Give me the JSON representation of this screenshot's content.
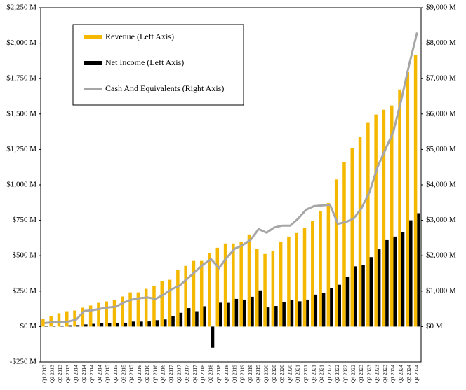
{
  "chart_data": {
    "type": "bar",
    "legend": "upper left",
    "categories": [
      "Q1 2013",
      "Q2 2013",
      "Q3 2013",
      "Q4 2013",
      "Q1 2014",
      "Q2 2014",
      "Q3 2014",
      "Q4 2014",
      "Q1 2015",
      "Q2 2015",
      "Q3 2015",
      "Q4 2015",
      "Q1 2016",
      "Q2 2016",
      "Q3 2016",
      "Q4 2016",
      "Q1 2017",
      "Q2 2017",
      "Q3 2017",
      "Q4 2017",
      "Q1 2018",
      "Q2 2018",
      "Q3 2018",
      "Q4 2018",
      "Q1 2019",
      "Q2 2019",
      "Q3 2019",
      "Q4 2019",
      "Q1 2020",
      "Q2 2020",
      "Q3 2020",
      "Q4 2020",
      "Q1 2021",
      "Q2 2021",
      "Q3 2021",
      "Q4 2021",
      "Q1 2022",
      "Q2 2022",
      "Q3 2022",
      "Q4 2022",
      "Q1 2023",
      "Q2 2023",
      "Q3 2023",
      "Q4 2023",
      "Q1 2024",
      "Q2 2024",
      "Q3 2024",
      "Q4 2024"
    ],
    "series": [
      {
        "name": "Revenue (Left Axis)",
        "type": "bar",
        "color": "#f5b800",
        "values": [
          54,
          74,
          94,
          108,
          113,
          133,
          148,
          167,
          177,
          187,
          212,
          241,
          241,
          266,
          285,
          320,
          330,
          399,
          428,
          463,
          463,
          517,
          556,
          586,
          586,
          595,
          650,
          546,
          512,
          536,
          600,
          635,
          660,
          699,
          743,
          812,
          871,
          1038,
          1161,
          1260,
          1339,
          1442,
          1496,
          1530,
          1560,
          1673,
          1796,
          1914
        ]
      },
      {
        "name": "Net Income (Left Axis)",
        "type": "bar",
        "color": "#000000",
        "values": [
          3,
          5,
          7,
          9,
          10,
          15,
          19,
          23,
          22,
          24,
          27,
          35,
          35,
          36,
          45,
          50,
          75,
          97,
          130,
          108,
          143,
          -150,
          168,
          167,
          195,
          190,
          210,
          255,
          135,
          145,
          170,
          185,
          178,
          190,
          225,
          238,
          270,
          295,
          350,
          425,
          435,
          490,
          545,
          610,
          635,
          665,
          750,
          800
        ]
      },
      {
        "name": "Cash And Equivalents (Right Axis)",
        "type": "line",
        "axis": "y2",
        "color": "#a6a6a6",
        "values": [
          100,
          120,
          130,
          140,
          200,
          440,
          460,
          500,
          540,
          560,
          680,
          760,
          800,
          820,
          780,
          900,
          1050,
          1150,
          1350,
          1550,
          1750,
          1900,
          1650,
          1950,
          2200,
          2300,
          2450,
          2750,
          2650,
          2800,
          2850,
          2850,
          3050,
          3300,
          3400,
          3420,
          3440,
          2900,
          2950,
          3050,
          3350,
          3800,
          4500,
          5000,
          5500,
          6400,
          7400,
          8300
        ]
      }
    ],
    "ylim": [
      -250,
      2250
    ],
    "yticks": [
      {
        "value": -250,
        "label": "-$250 M"
      },
      {
        "value": 0,
        "label": "$0 M"
      },
      {
        "value": 250,
        "label": "$250 M"
      },
      {
        "value": 500,
        "label": "$500 M"
      },
      {
        "value": 750,
        "label": "$750 M"
      },
      {
        "value": 1000,
        "label": "$1,000 M"
      },
      {
        "value": 1250,
        "label": "$1,250 M"
      },
      {
        "value": 1500,
        "label": "$1,500 M"
      },
      {
        "value": 1750,
        "label": "$1,750 M"
      },
      {
        "value": 2000,
        "label": "$2,000 M"
      },
      {
        "value": 2250,
        "label": "$2,250 M"
      }
    ],
    "y2lim": [
      -1000,
      9000
    ],
    "y2ticks": [
      {
        "value": 0,
        "label": "$0 M"
      },
      {
        "value": 1000,
        "label": "$1,000 M"
      },
      {
        "value": 2000,
        "label": "$2,000 M"
      },
      {
        "value": 3000,
        "label": "$3,000 M"
      },
      {
        "value": 4000,
        "label": "$4,000 M"
      },
      {
        "value": 5000,
        "label": "$5,000 M"
      },
      {
        "value": 6000,
        "label": "$6,000 M"
      },
      {
        "value": 7000,
        "label": "$7,000 M"
      },
      {
        "value": 8000,
        "label": "$8,000 M"
      },
      {
        "value": 9000,
        "label": "$9,000 M"
      }
    ]
  }
}
